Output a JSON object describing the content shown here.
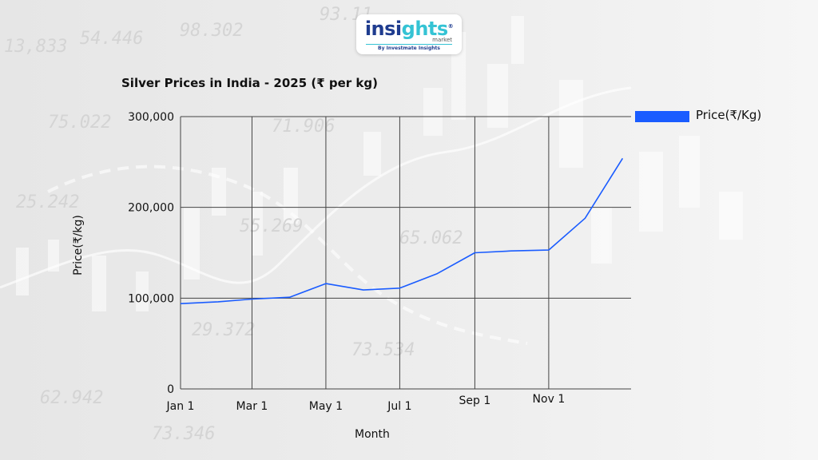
{
  "logo": {
    "name_part1": "insi",
    "name_part2": "ghts",
    "registered": "®",
    "subtitle": "market",
    "tagline": "By Investmate Insights"
  },
  "colors": {
    "series": "#1a5cff",
    "grid": "#444444",
    "logo_blue": "#1f3c8f",
    "logo_cyan": "#35c3d4"
  },
  "chart_data": {
    "type": "line",
    "title": "Silver Prices in India - 2025 (₹ per kg)",
    "xlabel": "Month",
    "ylabel": "Price(₹/kg)",
    "ylim": [
      0,
      300000
    ],
    "yticks": [
      0,
      100000,
      200000,
      300000
    ],
    "ytick_labels": [
      "0",
      "100,000",
      "200,000",
      "300,000"
    ],
    "xticks": [
      {
        "label": "Jan 1",
        "x": 0
      },
      {
        "label": "Mar 1",
        "x": 59
      },
      {
        "label": "May 1",
        "x": 120
      },
      {
        "label": "Jul 1",
        "x": 181
      },
      {
        "label": "Sep 1",
        "x": 243
      },
      {
        "label": "Nov 1",
        "x": 304
      }
    ],
    "xlim": [
      0,
      372
    ],
    "grid": true,
    "legend_position": "right",
    "series": [
      {
        "name": "Price(₹/Kg)",
        "x": [
          0,
          31,
          59,
          90,
          120,
          151,
          181,
          212,
          243,
          273,
          304,
          334,
          365
        ],
        "y": [
          94000,
          96000,
          99000,
          101000,
          116000,
          109000,
          111000,
          127000,
          150000,
          152000,
          153000,
          188000,
          254000
        ]
      }
    ]
  }
}
